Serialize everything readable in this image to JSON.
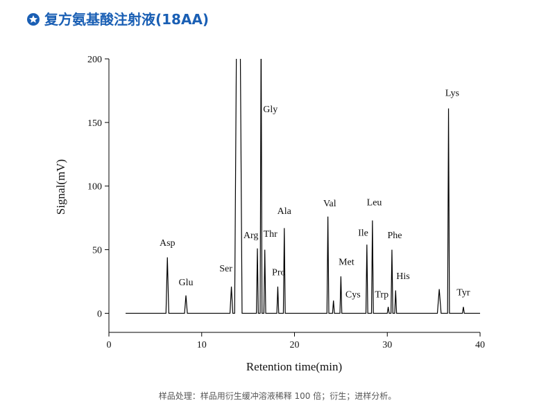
{
  "chart_data": {
    "type": "line",
    "title": "复方氨基酸注射液(18AA)",
    "x_label": "Retention time(min)",
    "y_label": "Signal(mV)",
    "caption": "样品处理：样品用衍生缓冲溶液稀释 100 倍；衍生；进样分析。",
    "color": "#000000",
    "xlim": [
      0,
      40
    ],
    "xticks": [
      0,
      10,
      20,
      30,
      40
    ],
    "ylim": [
      -15,
      200
    ],
    "yticks": [
      0,
      50,
      100,
      150,
      200
    ],
    "x": [
      1.8,
      6.15,
      6.3,
      6.45,
      8.15,
      8.3,
      8.45,
      13.05,
      13.2,
      13.35,
      13.55,
      13.75,
      14.15,
      14.35,
      15.9,
      16.0,
      16.1,
      16.3,
      16.4,
      16.5,
      16.7,
      16.8,
      16.9,
      18.1,
      18.2,
      18.3,
      18.8,
      18.9,
      19.0,
      23.5,
      23.6,
      23.7,
      24.1,
      24.2,
      24.3,
      24.9,
      25.0,
      25.1,
      27.7,
      27.8,
      27.9,
      28.3,
      28.4,
      28.5,
      30.0,
      30.1,
      30.2,
      30.4,
      30.5,
      30.6,
      30.8,
      30.9,
      31.0,
      35.4,
      35.6,
      35.8,
      36.5,
      36.6,
      36.7,
      38.1,
      38.2,
      38.3,
      40
    ],
    "values": [
      0,
      0,
      44,
      0,
      0,
      14,
      0,
      0,
      21,
      0,
      0,
      220,
      220,
      0,
      0,
      51,
      0,
      0,
      220,
      0,
      0,
      50,
      0,
      0,
      21,
      0,
      0,
      67,
      0,
      0,
      76,
      0,
      0,
      10,
      0,
      0,
      29,
      0,
      0,
      54,
      0,
      0,
      73,
      0,
      0,
      5,
      0,
      0,
      50,
      0,
      0,
      18,
      0,
      0,
      19,
      0,
      0,
      161,
      0,
      0,
      5,
      0,
      0
    ],
    "annotations": [
      {
        "text": "Asp",
        "x": 6.3,
        "y": 53
      },
      {
        "text": "Glu",
        "x": 8.3,
        "y": 22
      },
      {
        "text": "Ser",
        "x": 12.6,
        "y": 33
      },
      {
        "text": "Arg",
        "x": 15.3,
        "y": 59
      },
      {
        "text": "Thr",
        "x": 17.4,
        "y": 60
      },
      {
        "text": "Gly",
        "x": 17.4,
        "y": 158
      },
      {
        "text": "Pro",
        "x": 18.3,
        "y": 30
      },
      {
        "text": "Ala",
        "x": 18.9,
        "y": 78
      },
      {
        "text": "Val",
        "x": 23.8,
        "y": 84
      },
      {
        "text": "Met",
        "x": 25.6,
        "y": 38
      },
      {
        "text": "Cys",
        "x": 26.3,
        "y": 12.5
      },
      {
        "text": "Ile",
        "x": 27.4,
        "y": 61
      },
      {
        "text": "Leu",
        "x": 28.6,
        "y": 85
      },
      {
        "text": "Trp",
        "x": 29.4,
        "y": 12.5
      },
      {
        "text": "Phe",
        "x": 30.8,
        "y": 59
      },
      {
        "text": "His",
        "x": 31.7,
        "y": 27
      },
      {
        "text": "Lys",
        "x": 37,
        "y": 171
      },
      {
        "text": "Tyr",
        "x": 38.2,
        "y": 14
      }
    ]
  }
}
